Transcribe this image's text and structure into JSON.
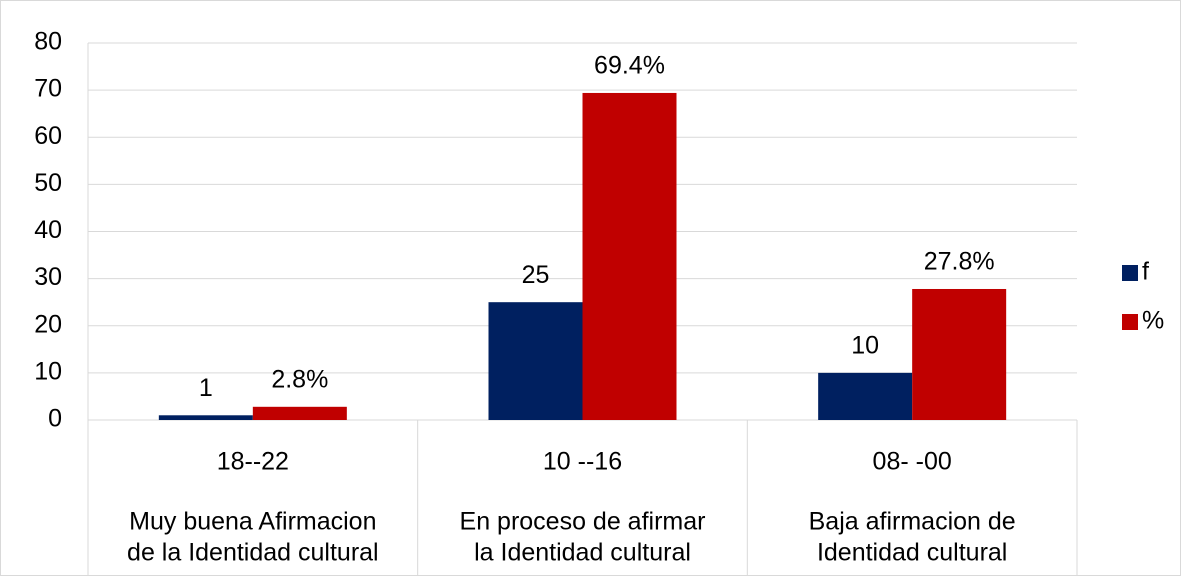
{
  "chart_data": {
    "type": "bar",
    "categories": [
      "18--22",
      "10 --16",
      "08- -00"
    ],
    "groups": [
      [
        "Muy buena Afirmacion",
        "de la Identidad cultural"
      ],
      [
        "En proceso de afirmar",
        "la  Identidad cultural"
      ],
      [
        "Baja afirmacion de",
        "Identidad cultural"
      ]
    ],
    "series": [
      {
        "name": "f",
        "color": "#002060",
        "values": [
          1,
          25,
          10
        ]
      },
      {
        "name": "%",
        "color": "#c00000",
        "values": [
          2.8,
          69.4,
          27.8
        ],
        "value_labels": [
          "2.8%",
          "69.4%",
          "27.8%"
        ]
      }
    ],
    "ylim": [
      0,
      80
    ],
    "yticks": [
      0,
      10,
      20,
      30,
      40,
      50,
      60,
      70,
      80
    ],
    "grid": true,
    "legend": "right"
  }
}
